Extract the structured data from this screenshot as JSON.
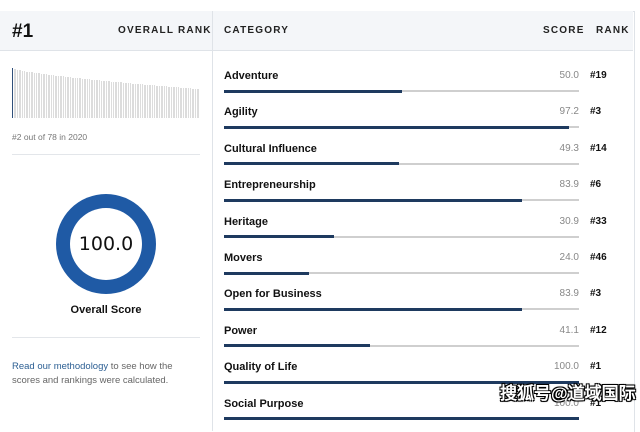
{
  "overall": {
    "rank": "#1",
    "rank_label": "OVERALL RANK",
    "previous_rank_caption": "#2 out of 78 in 2020",
    "score": "100.0",
    "score_label": "Overall Score",
    "methodology_link": "Read our methodology",
    "methodology_text": " to see how the scores and rankings were calculated."
  },
  "colors": {
    "donut": "#1f5aa5",
    "bar_fill": "#1e3a5f",
    "bar_track": "#cfcfcf",
    "header_bg": "#f4f6f9",
    "link": "#2c5f93"
  },
  "table": {
    "headers": {
      "category": "CATEGORY",
      "score": "SCORE",
      "rank": "RANK"
    },
    "rows": [
      {
        "name": "Adventure",
        "score": "50.0",
        "rank": "#19",
        "pct": 50.0
      },
      {
        "name": "Agility",
        "score": "97.2",
        "rank": "#3",
        "pct": 97.2
      },
      {
        "name": "Cultural Influence",
        "score": "49.3",
        "rank": "#14",
        "pct": 49.3
      },
      {
        "name": "Entrepreneurship",
        "score": "83.9",
        "rank": "#6",
        "pct": 83.9
      },
      {
        "name": "Heritage",
        "score": "30.9",
        "rank": "#33",
        "pct": 30.9
      },
      {
        "name": "Movers",
        "score": "24.0",
        "rank": "#46",
        "pct": 24.0
      },
      {
        "name": "Open for Business",
        "score": "83.9",
        "rank": "#3",
        "pct": 83.9
      },
      {
        "name": "Power",
        "score": "41.1",
        "rank": "#12",
        "pct": 41.1
      },
      {
        "name": "Quality of Life",
        "score": "100.0",
        "rank": "#1",
        "pct": 100.0
      },
      {
        "name": "Social Purpose",
        "score": "100.0",
        "rank": "#1",
        "pct": 100.0
      }
    ]
  },
  "watermark": "搜狐号@道域国际"
}
